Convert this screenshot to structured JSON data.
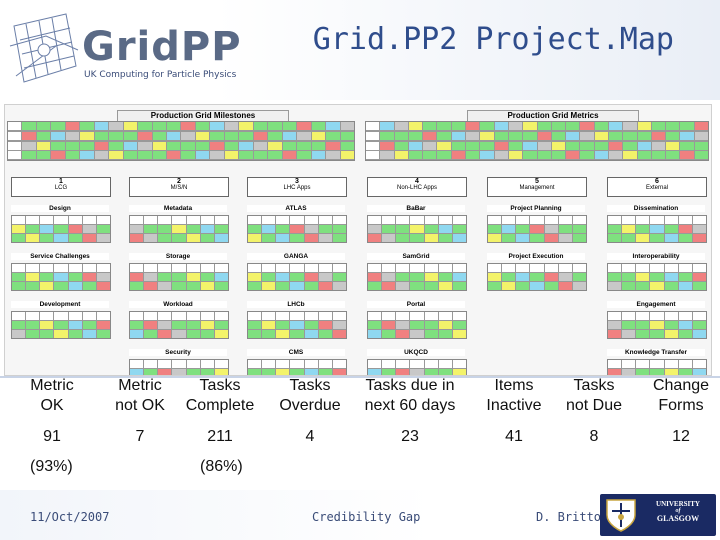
{
  "header": {
    "logo_text": "GridPP",
    "logo_subtitle": "UK Computing for Particle Physics",
    "title": "Grid.PP2 Project.Map"
  },
  "map": {
    "milestones_title": "Production Grid Milestones",
    "metrics_title": "Production Grid Metrics",
    "areas": [
      {
        "num": "1",
        "name": "LCG"
      },
      {
        "num": "2",
        "name": "M/S/N"
      },
      {
        "num": "3",
        "name": "LHC Apps"
      },
      {
        "num": "4",
        "name": "Non-LHC Apps"
      },
      {
        "num": "5",
        "name": "Management"
      },
      {
        "num": "6",
        "name": "External"
      }
    ],
    "subareas": [
      {
        "col": 0,
        "name": "Design"
      },
      {
        "col": 0,
        "name": "Service Challenges"
      },
      {
        "col": 0,
        "name": "Development"
      },
      {
        "col": 1,
        "name": "Metadata"
      },
      {
        "col": 1,
        "name": "Storage"
      },
      {
        "col": 1,
        "name": "Workload"
      },
      {
        "col": 1,
        "name": "Security"
      },
      {
        "col": 2,
        "name": "ATLAS"
      },
      {
        "col": 2,
        "name": "GANGA"
      },
      {
        "col": 2,
        "name": "LHCb"
      },
      {
        "col": 2,
        "name": "CMS"
      },
      {
        "col": 3,
        "name": "BaBar"
      },
      {
        "col": 3,
        "name": "SamGrid"
      },
      {
        "col": 3,
        "name": "Portal"
      },
      {
        "col": 3,
        "name": "UKQCD"
      },
      {
        "col": 4,
        "name": "Project Planning"
      },
      {
        "col": 4,
        "name": "Project Execution"
      },
      {
        "col": 5,
        "name": "Dissemination"
      },
      {
        "col": 5,
        "name": "Interoperability"
      },
      {
        "col": 5,
        "name": "Engagement"
      },
      {
        "col": 5,
        "name": "Knowledge Transfer"
      }
    ]
  },
  "metrics": [
    {
      "label_line1": "Metric",
      "label_line2": "OK",
      "value": "91"
    },
    {
      "label_line1": "Metric",
      "label_line2": "not OK",
      "value": "7"
    },
    {
      "label_line1": "Tasks",
      "label_line2": "Complete",
      "value": "211"
    },
    {
      "label_line1": "Tasks",
      "label_line2": "Overdue",
      "value": "4"
    },
    {
      "label_line1": "Tasks due in",
      "label_line2": "next 60 days",
      "value": "23"
    },
    {
      "label_line1": "Items",
      "label_line2": "Inactive",
      "value": "41"
    },
    {
      "label_line1": "Tasks",
      "label_line2": "not Due",
      "value": "8"
    },
    {
      "label_line1": "Change",
      "label_line2": "Forms",
      "value": "12"
    }
  ],
  "percentages": {
    "first": "(93%)",
    "second": "(86%)"
  },
  "footer": {
    "date": "11/Oct/2007",
    "center": "Credibility Gap",
    "author": "D. Britton",
    "uni_line1": "UNIVERSITY",
    "uni_line2": "of",
    "uni_line3": "GLASGOW"
  },
  "colors": {
    "title": "#2f4d8c",
    "ok": "#7fe07f",
    "warn": "#f3f36a",
    "late": "#f08080",
    "info": "#8fd8f0",
    "grey": "#c8c8c8"
  }
}
